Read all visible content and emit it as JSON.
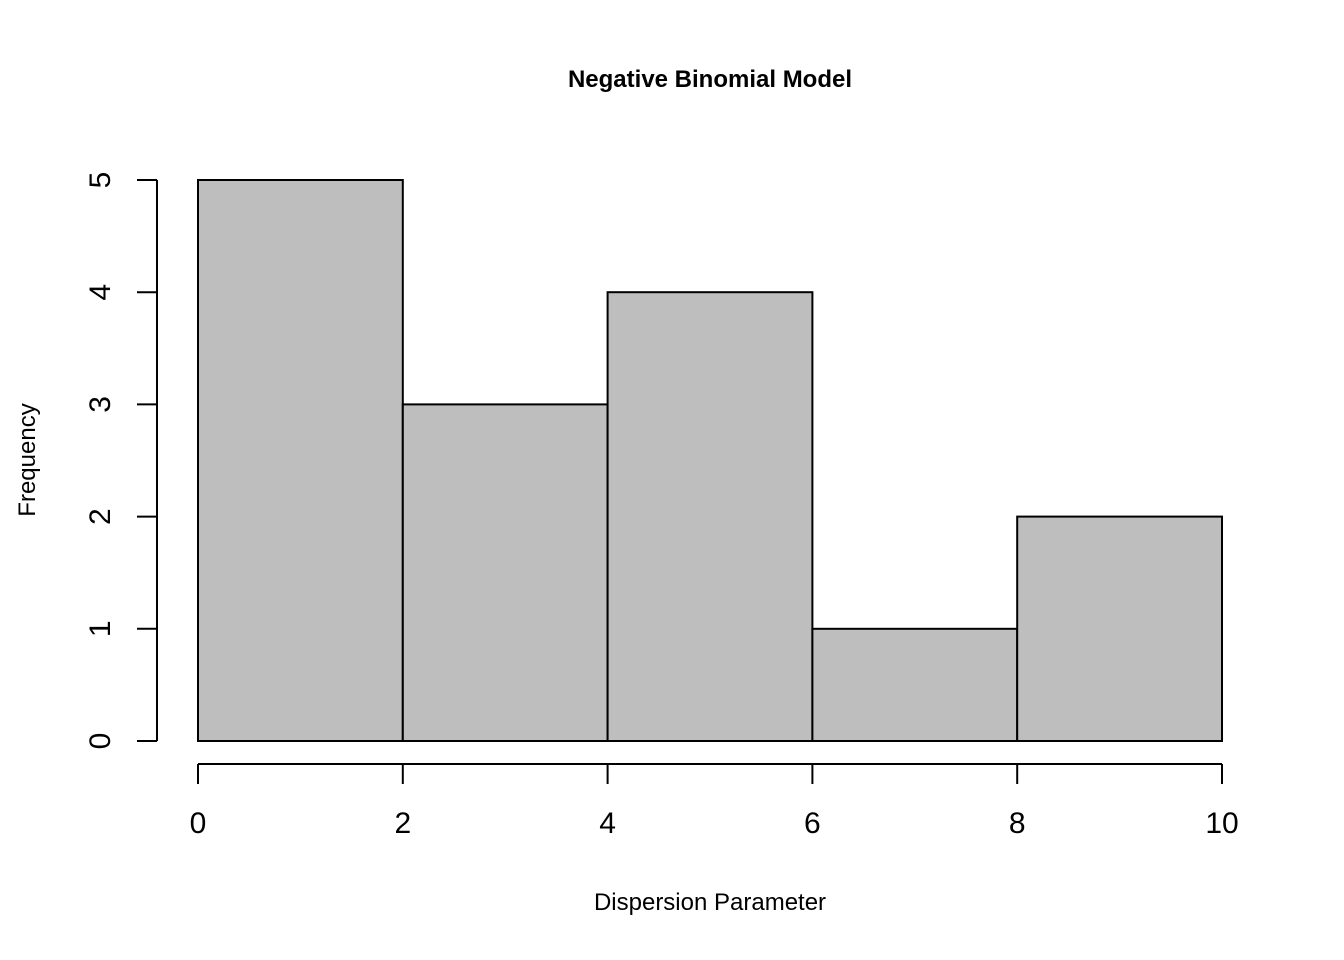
{
  "chart_data": {
    "type": "bar",
    "subtype": "histogram",
    "title": "Negative Binomial Model",
    "xlabel": "Dispersion Parameter",
    "ylabel": "Frequency",
    "bins": [
      {
        "start": 0,
        "end": 2,
        "count": 5
      },
      {
        "start": 2,
        "end": 4,
        "count": 3
      },
      {
        "start": 4,
        "end": 6,
        "count": 4
      },
      {
        "start": 6,
        "end": 8,
        "count": 1
      },
      {
        "start": 8,
        "end": 10,
        "count": 2
      }
    ],
    "xlim": [
      0,
      10
    ],
    "ylim": [
      0,
      5
    ],
    "xticks": [
      0,
      2,
      4,
      6,
      8,
      10
    ],
    "yticks": [
      0,
      1,
      2,
      3,
      4,
      5
    ],
    "grid": false,
    "legend": "none",
    "colors": {
      "bar_fill": "#bebebe",
      "bar_stroke": "#000000",
      "axis": "#000000",
      "background": "#ffffff"
    }
  }
}
